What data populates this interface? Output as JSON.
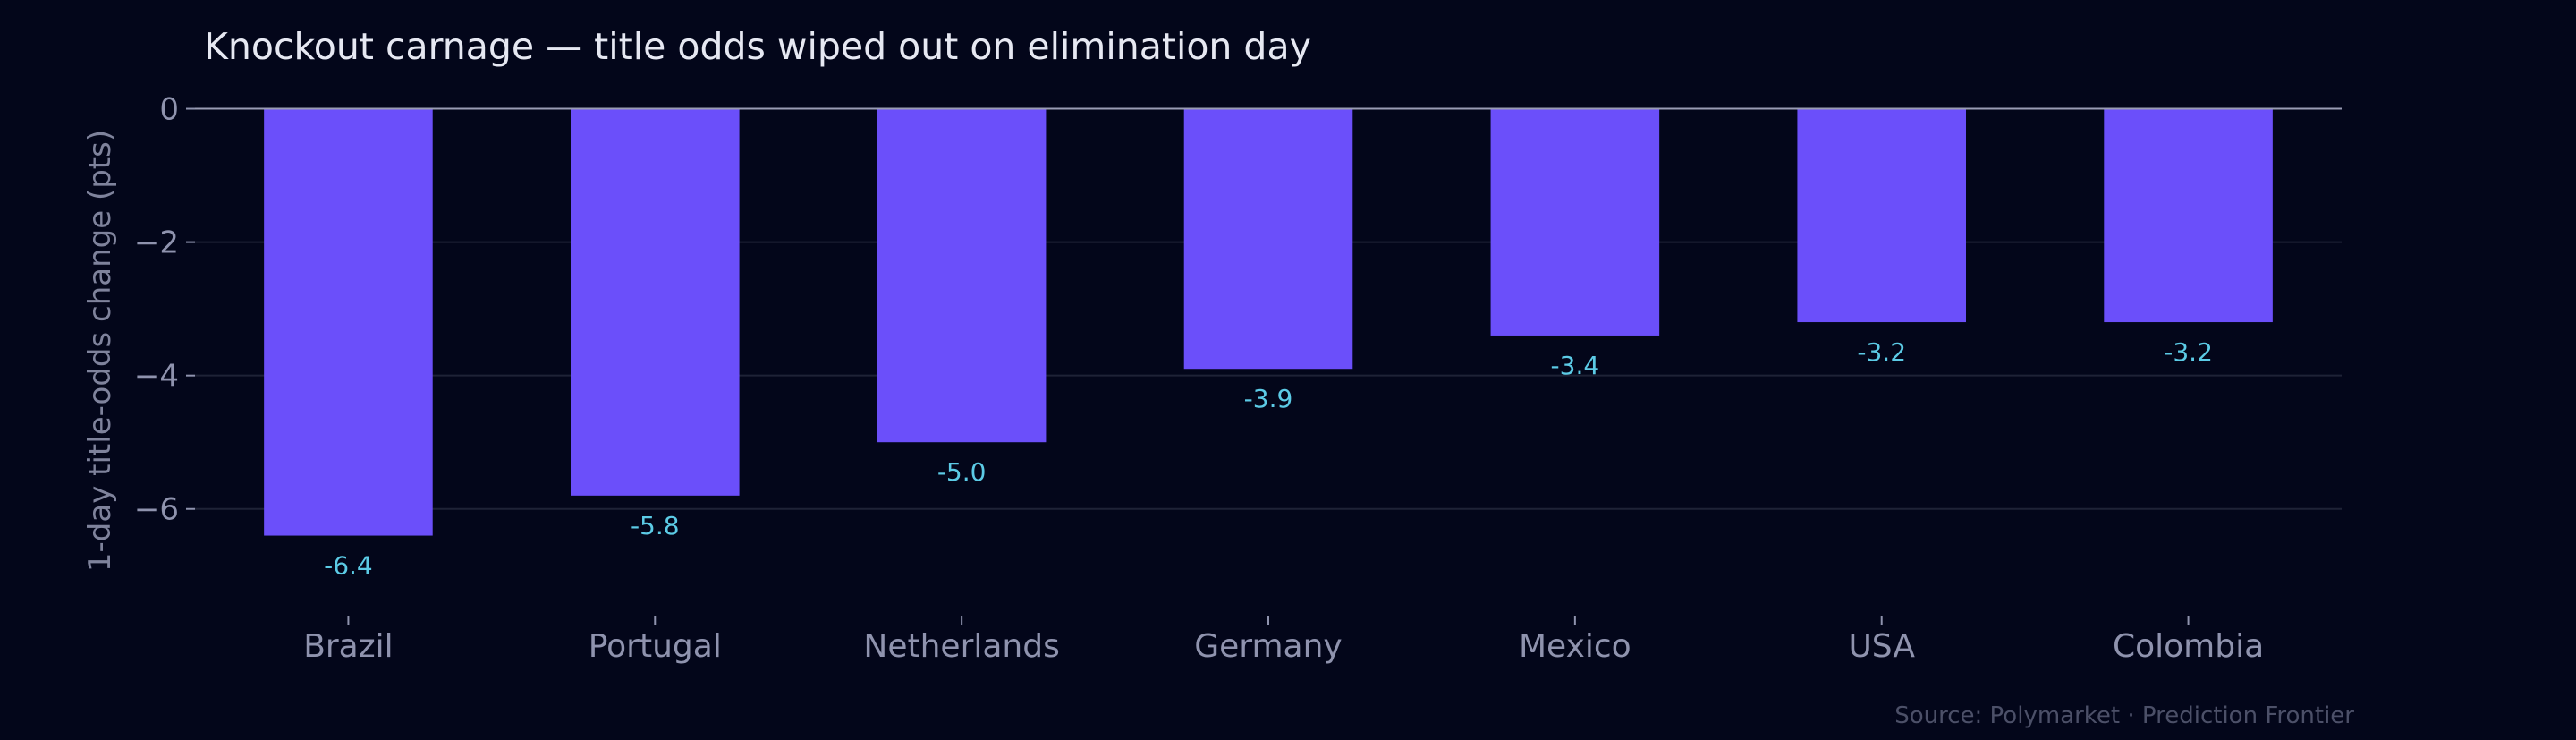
{
  "chart_data": {
    "type": "bar",
    "title": "Knockout carnage — title odds wiped out on elimination day",
    "xlabel": "",
    "ylabel": "1-day title-odds change (pts)",
    "categories": [
      "Brazil",
      "Portugal",
      "Netherlands",
      "Germany",
      "Mexico",
      "USA",
      "Colombia"
    ],
    "values": [
      -6.4,
      -5.8,
      -5.0,
      -3.9,
      -3.4,
      -3.2,
      -3.2
    ],
    "data_labels": [
      "-6.4",
      "-5.8",
      "-5.0",
      "-3.9",
      "-3.4",
      "-3.2",
      "-3.2"
    ],
    "yticks": [
      0,
      -2,
      -4,
      -6
    ],
    "ytick_labels": [
      "0",
      "−2",
      "−4",
      "−6"
    ],
    "ylim": [
      -7.6,
      0.45
    ],
    "grid": true,
    "legend": "none",
    "source": "Source: Polymarket · Prediction Frontier",
    "colors": {
      "background": "#03061a",
      "bar": "#6b4ffa",
      "data_label": "#5ccbe6",
      "grid": "#1e2236",
      "zero_line": "#9a9cb4",
      "tick_text": "#8f93ae"
    }
  }
}
